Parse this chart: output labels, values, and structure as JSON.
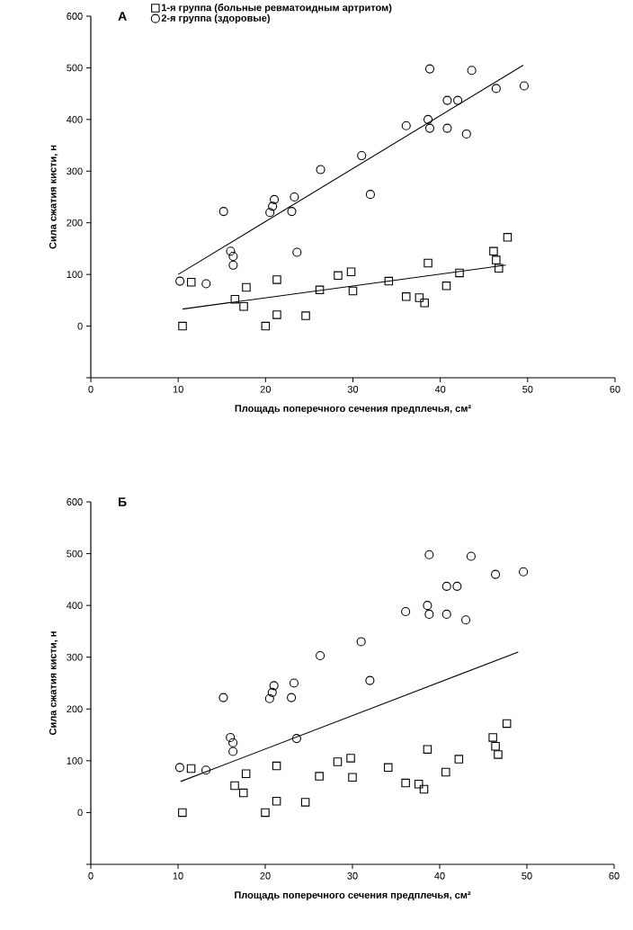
{
  "chart_data": [
    {
      "type": "scatter",
      "title": "А",
      "xlabel": "Площадь поперечного сечения предплечья, см²",
      "ylabel": "Сила сжатия кисти, н",
      "xlim": [
        0,
        60
      ],
      "ylim": [
        -100,
        600
      ],
      "xticks": [
        0,
        10,
        20,
        30,
        40,
        50,
        60
      ],
      "yticks": [
        {
          "value": -100,
          "label": null
        },
        0,
        100,
        200,
        300,
        400,
        500,
        600
      ],
      "legend": "top left",
      "grid": false,
      "series": [
        {
          "name": "1-я группа (больные ревматоидным артритом)",
          "color": "#000000",
          "marker": "square",
          "x": [
            10.5,
            11.5,
            16.5,
            17.5,
            17.8,
            20.0,
            21.3,
            21.3,
            24.6,
            26.2,
            28.3,
            29.8,
            30.0,
            34.1,
            36.1,
            37.6,
            38.2,
            38.6,
            40.7,
            42.2,
            46.1,
            46.4,
            46.7,
            47.7
          ],
          "values": [
            0,
            85,
            52,
            38,
            75,
            0,
            90,
            22,
            20,
            70,
            98,
            105,
            68,
            87,
            57,
            55,
            45,
            122,
            78,
            103,
            145,
            128,
            112,
            172
          ]
        },
        {
          "name": "2-я группа (здоровые)",
          "color": "#000000",
          "marker": "circle",
          "x": [
            10.2,
            13.2,
            15.2,
            16.0,
            16.3,
            16.3,
            20.5,
            20.8,
            21.0,
            23.0,
            23.3,
            23.6,
            26.3,
            31.0,
            32.0,
            36.1,
            38.6,
            38.8,
            38.8,
            40.8,
            40.8,
            42.0,
            43.0,
            43.6,
            46.4,
            49.6
          ],
          "values": [
            87,
            82,
            222,
            145,
            135,
            118,
            220,
            232,
            245,
            222,
            250,
            143,
            303,
            330,
            255,
            388,
            400,
            383,
            498,
            383,
            437,
            437,
            372,
            495,
            460,
            465
          ]
        },
        {
          "type": "line",
          "color": "#000000",
          "marker": "none",
          "x": [
            10.0,
            49.5
          ],
          "values": [
            100,
            505
          ]
        },
        {
          "type": "line",
          "color": "#000000",
          "marker": "none",
          "x": [
            10.5,
            47.5
          ],
          "values": [
            33,
            118
          ]
        }
      ]
    },
    {
      "type": "scatter",
      "title": "Б",
      "xlabel": "Площадь поперечного сечения предплечья, см²",
      "ylabel": "Сила сжатия кисти, н",
      "xlim": [
        0,
        60
      ],
      "ylim": [
        -100,
        600
      ],
      "xticks": [
        0,
        10,
        20,
        30,
        40,
        50,
        60
      ],
      "yticks": [
        {
          "value": -100,
          "label": null
        },
        0,
        100,
        200,
        300,
        400,
        500,
        600
      ],
      "grid": false,
      "series": [
        {
          "color": "#000000",
          "marker": "square",
          "x": [
            10.5,
            11.5,
            16.5,
            17.5,
            17.8,
            20.0,
            21.3,
            21.3,
            24.6,
            26.2,
            28.3,
            29.8,
            30.0,
            34.1,
            36.1,
            37.6,
            38.2,
            38.6,
            40.7,
            42.2,
            46.1,
            46.4,
            46.7,
            47.7
          ],
          "values": [
            0,
            85,
            52,
            38,
            75,
            0,
            90,
            22,
            20,
            70,
            98,
            105,
            68,
            87,
            57,
            55,
            45,
            122,
            78,
            103,
            145,
            128,
            112,
            172
          ]
        },
        {
          "color": "#000000",
          "marker": "circle",
          "x": [
            10.2,
            13.2,
            15.2,
            16.0,
            16.3,
            16.3,
            20.5,
            20.8,
            21.0,
            23.0,
            23.3,
            23.6,
            26.3,
            31.0,
            32.0,
            36.1,
            38.6,
            38.8,
            38.8,
            40.8,
            40.8,
            42.0,
            43.0,
            43.6,
            46.4,
            49.6
          ],
          "values": [
            87,
            82,
            222,
            145,
            135,
            118,
            220,
            232,
            245,
            222,
            250,
            143,
            303,
            330,
            255,
            388,
            400,
            383,
            498,
            383,
            437,
            437,
            372,
            495,
            460,
            465
          ]
        },
        {
          "type": "line",
          "color": "#000000",
          "marker": "none",
          "x": [
            10.3,
            49.0
          ],
          "values": [
            60,
            310
          ]
        }
      ]
    }
  ]
}
